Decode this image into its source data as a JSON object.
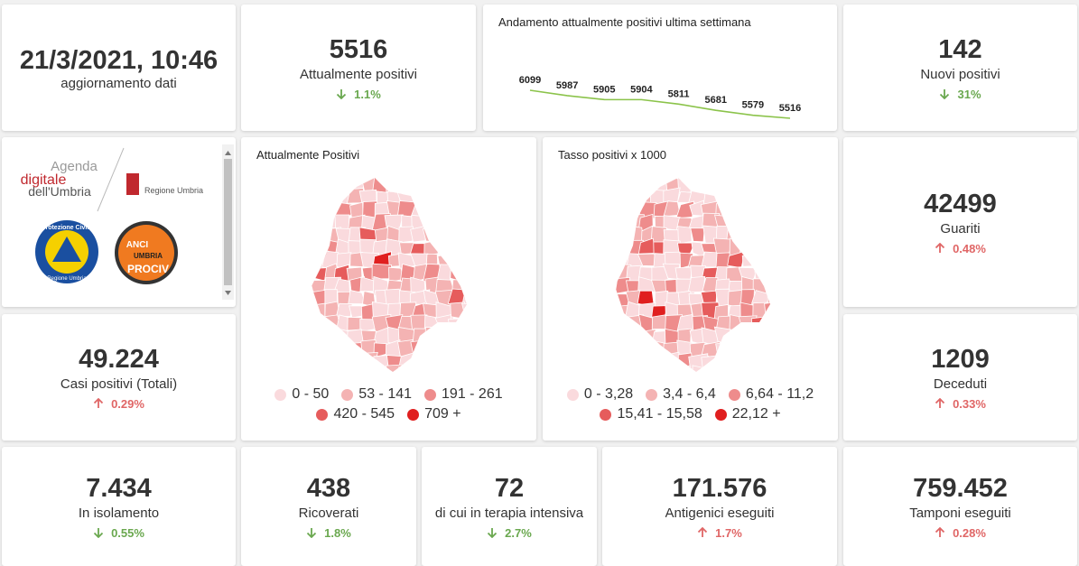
{
  "updated": {
    "value": "21/3/2021, 10:46",
    "label": "aggiornamento dati"
  },
  "colors": {
    "up": "#e06666",
    "down": "#6aa84f"
  },
  "cards": [
    {
      "value": "5516",
      "label": "Attualmente positivi",
      "change": "1.1%",
      "direction": "down"
    },
    {
      "value": "142",
      "label": "Nuovi positivi",
      "change": "31%",
      "direction": "down"
    },
    {
      "value": "42499",
      "label": "Guariti",
      "change": "0.48%",
      "direction": "up"
    },
    {
      "value": "49.224",
      "label": "Casi positivi (Totali)",
      "change": "0.29%",
      "direction": "up"
    },
    {
      "value": "1209",
      "label": "Deceduti",
      "change": "0.33%",
      "direction": "up"
    },
    {
      "value": "7.434",
      "label": "In isolamento",
      "change": "0.55%",
      "direction": "down"
    },
    {
      "value": "438",
      "label": "Ricoverati",
      "change": "1.8%",
      "direction": "down"
    },
    {
      "value": "72",
      "label": "di cui in terapia intensiva",
      "change": "2.7%",
      "direction": "down"
    },
    {
      "value": "171.576",
      "label": "Antigenici eseguiti",
      "change": "1.7%",
      "direction": "up"
    },
    {
      "value": "759.452",
      "label": "Tamponi eseguiti",
      "change": "0.28%",
      "direction": "up"
    }
  ],
  "trend": {
    "title": "Andamento attualmente positivi ultima settimana",
    "values": [
      6099,
      5987,
      5905,
      5904,
      5811,
      5681,
      5579,
      5516
    ],
    "color": "#8bc34a"
  },
  "maps": [
    {
      "title": "Attualmente Positivi",
      "legend": [
        {
          "label": "0 - 50",
          "color": "#fadadd"
        },
        {
          "label": "53 - 141",
          "color": "#f4b3b3"
        },
        {
          "label": "191 - 261",
          "color": "#ee8c8c"
        },
        {
          "label": "420 - 545",
          "color": "#e65c5c"
        },
        {
          "label": "709 +",
          "color": "#e01f1f"
        }
      ]
    },
    {
      "title": "Tasso positivi x 1000",
      "legend": [
        {
          "label": "0 - 3,28",
          "color": "#fadadd"
        },
        {
          "label": "3,4 - 6,4",
          "color": "#f4b3b3"
        },
        {
          "label": "6,64 - 11,2",
          "color": "#ee8c8c"
        },
        {
          "label": "15,41 - 15,58",
          "color": "#e65c5c"
        },
        {
          "label": "22,12 +",
          "color": "#e01f1f"
        }
      ]
    }
  ],
  "logos": {
    "agenda": [
      "Agenda",
      "digitale",
      "dell'Umbria"
    ],
    "regione": "Regione Umbria",
    "protezione": "Protezione Civile",
    "protezione_sub": "Regione Umbria",
    "anci": [
      "ANCI",
      "UMBRIA",
      "PROCIV"
    ]
  }
}
